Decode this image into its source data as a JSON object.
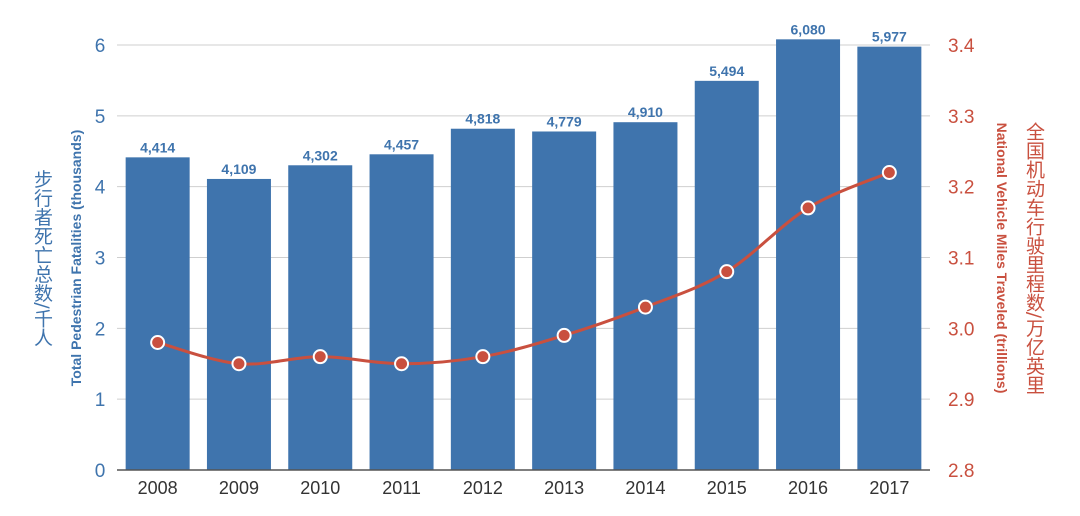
{
  "chart_data": {
    "type": "bar",
    "categories": [
      "2008",
      "2009",
      "2010",
      "2011",
      "2012",
      "2013",
      "2014",
      "2015",
      "2016",
      "2017"
    ],
    "series": [
      {
        "name": "Total Pedestrian Fatalities (thousands)",
        "type": "bar",
        "axis": "left",
        "values": [
          4.414,
          4.109,
          4.302,
          4.457,
          4.818,
          4.779,
          4.91,
          5.494,
          6.08,
          5.977
        ],
        "data_labels": [
          "4,414",
          "4,109",
          "4,302",
          "4,457",
          "4,818",
          "4,779",
          "4,910",
          "5,494",
          "6,080",
          "5,977"
        ],
        "color": "#3f74ad"
      },
      {
        "name": "National Vehicle Miles Traveled (trillions)",
        "type": "line",
        "axis": "right",
        "values": [
          2.98,
          2.95,
          2.96,
          2.95,
          2.96,
          2.99,
          3.03,
          3.08,
          3.17,
          3.22
        ],
        "color": "#c9503f"
      }
    ],
    "ylabel": "Total Pedestrian Fatalities (thousands)",
    "ylabel_cn": "步行者死亡总数/千人",
    "y2label": "National Vehicle Miles Traveled (trillions)",
    "y2label_cn": "全国机动车行驶里程数/万亿英里",
    "ylim": [
      0,
      6
    ],
    "y2lim": [
      2.8,
      3.4
    ],
    "yticks": [
      "0",
      "1",
      "2",
      "3",
      "4",
      "5",
      "6"
    ],
    "y2ticks": [
      "2.8",
      "2.9",
      "3.0",
      "3.1",
      "3.2",
      "3.3",
      "3.4"
    ],
    "grid": true
  }
}
